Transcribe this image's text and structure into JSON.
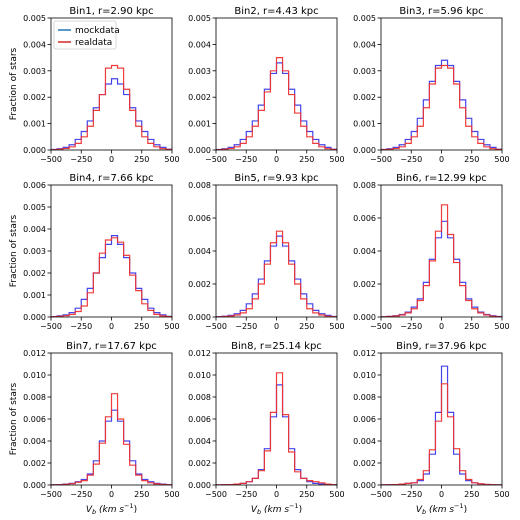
{
  "figure": {
    "xlabel": "V_b (km s⁻¹)",
    "ylabel": "Fraction of stars",
    "xlabel_parts": {
      "main": "V",
      "sub": "b",
      "units": "(km s",
      "exp": "−1",
      "close": ")"
    }
  },
  "legend": {
    "items": [
      {
        "label": "mockdata",
        "color": "#1f77b4"
      },
      {
        "label": "realdata",
        "color": "#d62728"
      }
    ]
  },
  "colors": {
    "mock_draw": "#3b3bea",
    "real_draw": "#ee3333"
  },
  "chart_data": [
    {
      "type": "histogram",
      "title": "Bin1, r=2.90 kpc",
      "xlim": [
        -500,
        500
      ],
      "ylim": [
        0,
        0.005
      ],
      "xticks": [
        -500,
        -250,
        0,
        250,
        500
      ],
      "xtick_labels": [
        "−500",
        "−250",
        "0",
        "250",
        "500"
      ],
      "yticks": [
        0,
        0.001,
        0.002,
        0.003,
        0.004,
        0.005
      ],
      "ytick_labels": [
        "0.000",
        "0.001",
        "0.002",
        "0.003",
        "0.004",
        "0.005"
      ],
      "bin_edges": [
        -500,
        -450,
        -400,
        -350,
        -300,
        -250,
        -200,
        -150,
        -100,
        -50,
        0,
        50,
        100,
        150,
        200,
        250,
        300,
        350,
        400,
        450,
        500
      ],
      "series": [
        {
          "name": "mockdata",
          "values": [
            2e-05,
            5e-05,
            0.0001,
            0.0002,
            0.0004,
            0.0007,
            0.0011,
            0.0016,
            0.0021,
            0.0025,
            0.0027,
            0.0025,
            0.0021,
            0.0016,
            0.0011,
            0.0007,
            0.0004,
            0.0002,
            0.0001,
            3e-05
          ]
        },
        {
          "name": "realdata",
          "values": [
            1e-05,
            3e-05,
            6e-05,
            0.00012,
            0.00025,
            0.0005,
            0.0009,
            0.0015,
            0.0021,
            0.0031,
            0.0032,
            0.0031,
            0.0023,
            0.0015,
            0.0009,
            0.0005,
            0.00025,
            0.00012,
            5e-05,
            2e-05
          ]
        }
      ]
    },
    {
      "type": "histogram",
      "title": "Bin2, r=4.43 kpc",
      "xlim": [
        -500,
        500
      ],
      "ylim": [
        0,
        0.005
      ],
      "xticks": [
        -500,
        -250,
        0,
        250,
        500
      ],
      "xtick_labels": [
        "−500",
        "−250",
        "0",
        "250",
        "500"
      ],
      "yticks": [
        0,
        0.001,
        0.002,
        0.003,
        0.004,
        0.005
      ],
      "ytick_labels": [
        "0.000",
        "0.001",
        "0.002",
        "0.003",
        "0.004",
        "0.005"
      ],
      "bin_edges": [
        -500,
        -450,
        -400,
        -350,
        -300,
        -250,
        -200,
        -150,
        -100,
        -50,
        0,
        50,
        100,
        150,
        200,
        250,
        300,
        350,
        400,
        450,
        500
      ],
      "series": [
        {
          "name": "mockdata",
          "values": [
            2e-05,
            5e-05,
            0.0001,
            0.0002,
            0.0004,
            0.0007,
            0.0011,
            0.0017,
            0.0023,
            0.0029,
            0.0033,
            0.0029,
            0.0023,
            0.0017,
            0.0011,
            0.0007,
            0.0004,
            0.0002,
            0.0001,
            3e-05
          ]
        },
        {
          "name": "realdata",
          "values": [
            1e-05,
            3e-05,
            6e-05,
            0.00012,
            0.00025,
            0.0005,
            0.0009,
            0.0015,
            0.0022,
            0.003,
            0.0035,
            0.003,
            0.0021,
            0.0014,
            0.0009,
            0.0005,
            0.00025,
            0.00012,
            5e-05,
            2e-05
          ]
        }
      ]
    },
    {
      "type": "histogram",
      "title": "Bin3, r=5.96 kpc",
      "xlim": [
        -500,
        500
      ],
      "ylim": [
        0,
        0.005
      ],
      "xticks": [
        -500,
        -250,
        0,
        250,
        500
      ],
      "xtick_labels": [
        "−500",
        "−250",
        "0",
        "250",
        "500"
      ],
      "yticks": [
        0,
        0.001,
        0.002,
        0.003,
        0.004,
        0.005
      ],
      "ytick_labels": [
        "0.000",
        "0.001",
        "0.002",
        "0.003",
        "0.004",
        "0.005"
      ],
      "bin_edges": [
        -500,
        -450,
        -400,
        -350,
        -300,
        -250,
        -200,
        -150,
        -100,
        -50,
        0,
        50,
        100,
        150,
        200,
        250,
        300,
        350,
        400,
        450,
        500
      ],
      "series": [
        {
          "name": "mockdata",
          "values": [
            2e-05,
            5e-05,
            0.0001,
            0.0002,
            0.0004,
            0.0007,
            0.0012,
            0.0019,
            0.0026,
            0.0032,
            0.0034,
            0.0032,
            0.0026,
            0.0019,
            0.0012,
            0.0007,
            0.0004,
            0.0002,
            0.0001,
            3e-05
          ]
        },
        {
          "name": "realdata",
          "values": [
            1e-05,
            3e-05,
            6e-05,
            0.00012,
            0.00025,
            0.0005,
            0.0009,
            0.0016,
            0.0025,
            0.0031,
            0.0032,
            0.0031,
            0.0025,
            0.0016,
            0.0009,
            0.0005,
            0.00025,
            0.00012,
            5e-05,
            2e-05
          ]
        }
      ]
    },
    {
      "type": "histogram",
      "title": "Bin4, r=7.66 kpc",
      "xlim": [
        -500,
        500
      ],
      "ylim": [
        0,
        0.006
      ],
      "xticks": [
        -500,
        -250,
        0,
        250,
        500
      ],
      "xtick_labels": [
        "−500",
        "−250",
        "0",
        "250",
        "500"
      ],
      "yticks": [
        0,
        0.001,
        0.002,
        0.003,
        0.004,
        0.005,
        0.006
      ],
      "ytick_labels": [
        "0.000",
        "0.001",
        "0.002",
        "0.003",
        "0.004",
        "0.005",
        "0.006"
      ],
      "bin_edges": [
        -500,
        -450,
        -400,
        -350,
        -300,
        -250,
        -200,
        -150,
        -100,
        -50,
        0,
        50,
        100,
        150,
        200,
        250,
        300,
        350,
        400,
        450,
        500
      ],
      "series": [
        {
          "name": "mockdata",
          "values": [
            2e-05,
            5e-05,
            0.0001,
            0.0002,
            0.0004,
            0.0008,
            0.0013,
            0.002,
            0.0027,
            0.0033,
            0.0037,
            0.0033,
            0.0027,
            0.002,
            0.0013,
            0.0008,
            0.0004,
            0.0002,
            0.0001,
            3e-05
          ]
        },
        {
          "name": "realdata",
          "values": [
            1e-05,
            3e-05,
            6e-05,
            0.00012,
            0.00025,
            0.0005,
            0.0011,
            0.002,
            0.0029,
            0.0035,
            0.0036,
            0.0034,
            0.0028,
            0.0019,
            0.0012,
            0.0006,
            0.0003,
            0.00012,
            5e-05,
            2e-05
          ]
        }
      ]
    },
    {
      "type": "histogram",
      "title": "Bin5, r=9.93 kpc",
      "xlim": [
        -500,
        500
      ],
      "ylim": [
        0,
        0.008
      ],
      "xticks": [
        -500,
        -250,
        0,
        250,
        500
      ],
      "xtick_labels": [
        "−500",
        "−250",
        "0",
        "250",
        "500"
      ],
      "yticks": [
        0,
        0.002,
        0.004,
        0.006,
        0.008
      ],
      "ytick_labels": [
        "0.000",
        "0.002",
        "0.004",
        "0.006",
        "0.008"
      ],
      "bin_edges": [
        -500,
        -450,
        -400,
        -350,
        -300,
        -250,
        -200,
        -150,
        -100,
        -50,
        0,
        50,
        100,
        150,
        200,
        250,
        300,
        350,
        400,
        450,
        500
      ],
      "series": [
        {
          "name": "mockdata",
          "values": [
            2e-05,
            5e-05,
            0.0001,
            0.0002,
            0.0004,
            0.0008,
            0.0014,
            0.0023,
            0.0034,
            0.0043,
            0.0049,
            0.0043,
            0.0034,
            0.0023,
            0.0014,
            0.0008,
            0.0004,
            0.0002,
            0.0001,
            3e-05
          ]
        },
        {
          "name": "realdata",
          "values": [
            1e-05,
            3e-05,
            6e-05,
            0.00012,
            0.00025,
            0.0005,
            0.0011,
            0.002,
            0.0032,
            0.0045,
            0.0052,
            0.0045,
            0.0032,
            0.002,
            0.0011,
            0.0005,
            0.00025,
            0.00012,
            5e-05,
            2e-05
          ]
        }
      ]
    },
    {
      "type": "histogram",
      "title": "Bin6, r=12.99 kpc",
      "xlim": [
        -500,
        500
      ],
      "ylim": [
        0,
        0.008
      ],
      "xticks": [
        -500,
        -250,
        0,
        250,
        500
      ],
      "xtick_labels": [
        "−500",
        "−250",
        "0",
        "250",
        "500"
      ],
      "yticks": [
        0,
        0.002,
        0.004,
        0.006,
        0.008
      ],
      "ytick_labels": [
        "0.000",
        "0.002",
        "0.004",
        "0.006",
        "0.008"
      ],
      "bin_edges": [
        -500,
        -450,
        -400,
        -350,
        -300,
        -250,
        -200,
        -150,
        -100,
        -50,
        0,
        50,
        100,
        150,
        200,
        250,
        300,
        350,
        400,
        450,
        500
      ],
      "series": [
        {
          "name": "mockdata",
          "values": [
            2e-05,
            4e-05,
            8e-05,
            0.00015,
            0.0003,
            0.0006,
            0.0011,
            0.0021,
            0.0035,
            0.0048,
            0.0058,
            0.0048,
            0.0035,
            0.0021,
            0.0011,
            0.0006,
            0.0003,
            0.00015,
            8e-05,
            3e-05
          ]
        },
        {
          "name": "realdata",
          "values": [
            1e-05,
            3e-05,
            6e-05,
            0.00012,
            0.00025,
            0.0005,
            0.001,
            0.0019,
            0.0034,
            0.0052,
            0.0068,
            0.005,
            0.0033,
            0.0019,
            0.001,
            0.0005,
            0.00025,
            0.00012,
            5e-05,
            2e-05
          ]
        }
      ]
    },
    {
      "type": "histogram",
      "title": "Bin7, r=17.67 kpc",
      "xlim": [
        -500,
        500
      ],
      "ylim": [
        0,
        0.012
      ],
      "xticks": [
        -500,
        -250,
        0,
        250,
        500
      ],
      "xtick_labels": [
        "−500",
        "−250",
        "0",
        "250",
        "500"
      ],
      "yticks": [
        0,
        0.002,
        0.004,
        0.006,
        0.008,
        0.01,
        0.012
      ],
      "ytick_labels": [
        "0.000",
        "0.002",
        "0.004",
        "0.006",
        "0.008",
        "0.010",
        "0.012"
      ],
      "bin_edges": [
        -500,
        -450,
        -400,
        -350,
        -300,
        -250,
        -200,
        -150,
        -100,
        -50,
        0,
        50,
        100,
        150,
        200,
        250,
        300,
        350,
        400,
        450,
        500
      ],
      "series": [
        {
          "name": "mockdata",
          "values": [
            2e-05,
            4e-05,
            8e-05,
            0.00015,
            0.0003,
            0.0005,
            0.001,
            0.0022,
            0.004,
            0.0058,
            0.0068,
            0.0058,
            0.004,
            0.0022,
            0.001,
            0.0005,
            0.0003,
            0.00015,
            8e-05,
            3e-05
          ]
        },
        {
          "name": "realdata",
          "values": [
            1e-05,
            3e-05,
            6e-05,
            0.00012,
            0.00025,
            0.0004,
            0.0009,
            0.0019,
            0.0038,
            0.0062,
            0.0083,
            0.006,
            0.0037,
            0.0018,
            0.0009,
            0.0004,
            0.0002,
            0.0001,
            5e-05,
            2e-05
          ]
        }
      ]
    },
    {
      "type": "histogram",
      "title": "Bin8, r=25.14 kpc",
      "xlim": [
        -500,
        500
      ],
      "ylim": [
        0,
        0.012
      ],
      "xticks": [
        -500,
        -250,
        0,
        250,
        500
      ],
      "xtick_labels": [
        "−500",
        "−250",
        "0",
        "250",
        "500"
      ],
      "yticks": [
        0,
        0.002,
        0.004,
        0.006,
        0.008,
        0.01,
        0.012
      ],
      "ytick_labels": [
        "0.000",
        "0.002",
        "0.004",
        "0.006",
        "0.008",
        "0.010",
        "0.012"
      ],
      "bin_edges": [
        -500,
        -450,
        -400,
        -350,
        -300,
        -250,
        -200,
        -150,
        -100,
        -50,
        0,
        50,
        100,
        150,
        200,
        250,
        300,
        350,
        400,
        450,
        500
      ],
      "series": [
        {
          "name": "mockdata",
          "values": [
            1e-05,
            2e-05,
            4e-05,
            8e-05,
            0.00015,
            0.0003,
            0.0006,
            0.0014,
            0.0033,
            0.0062,
            0.0091,
            0.0062,
            0.0033,
            0.0014,
            0.0006,
            0.0003,
            0.00015,
            8e-05,
            4e-05,
            2e-05
          ]
        },
        {
          "name": "realdata",
          "values": [
            1e-05,
            2e-05,
            4e-05,
            8e-05,
            0.00015,
            0.0003,
            0.0006,
            0.0013,
            0.0031,
            0.0066,
            0.0102,
            0.0064,
            0.003,
            0.0012,
            0.0006,
            0.0004,
            0.0003,
            0.0002,
            8e-05,
            3e-05
          ]
        }
      ]
    },
    {
      "type": "histogram",
      "title": "Bin9, r=37.96 kpc",
      "xlim": [
        -500,
        500
      ],
      "ylim": [
        0,
        0.012
      ],
      "xticks": [
        -500,
        -250,
        0,
        250,
        500
      ],
      "xtick_labels": [
        "−500",
        "−250",
        "0",
        "250",
        "500"
      ],
      "yticks": [
        0,
        0.002,
        0.004,
        0.006,
        0.008,
        0.01,
        0.012
      ],
      "ytick_labels": [
        "0.000",
        "0.002",
        "0.004",
        "0.006",
        "0.008",
        "0.010",
        "0.012"
      ],
      "bin_edges": [
        -500,
        -450,
        -400,
        -350,
        -300,
        -250,
        -200,
        -150,
        -100,
        -50,
        0,
        50,
        100,
        150,
        200,
        250,
        300,
        350,
        400,
        450,
        500
      ],
      "series": [
        {
          "name": "mockdata",
          "values": [
            1e-05,
            2e-05,
            4e-05,
            8e-05,
            0.00015,
            0.0002,
            0.0004,
            0.001,
            0.0028,
            0.0066,
            0.0108,
            0.0066,
            0.0028,
            0.001,
            0.0004,
            0.0002,
            0.0001,
            5e-05,
            2e-05,
            1e-05
          ]
        },
        {
          "name": "realdata",
          "values": [
            1e-05,
            2e-05,
            4e-05,
            8e-05,
            0.00015,
            0.0002,
            0.0005,
            0.0013,
            0.0032,
            0.0058,
            0.0092,
            0.0062,
            0.0033,
            0.0013,
            0.0005,
            0.0002,
            0.0001,
            5e-05,
            2e-05,
            1e-05
          ]
        }
      ]
    }
  ]
}
